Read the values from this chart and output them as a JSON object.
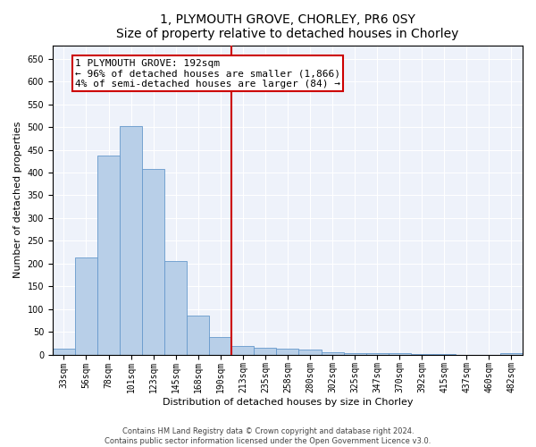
{
  "title": "1, PLYMOUTH GROVE, CHORLEY, PR6 0SY",
  "subtitle": "Size of property relative to detached houses in Chorley",
  "xlabel": "Distribution of detached houses by size in Chorley",
  "ylabel": "Number of detached properties",
  "categories": [
    "33sqm",
    "56sqm",
    "78sqm",
    "101sqm",
    "123sqm",
    "145sqm",
    "168sqm",
    "190sqm",
    "213sqm",
    "235sqm",
    "258sqm",
    "280sqm",
    "302sqm",
    "325sqm",
    "347sqm",
    "370sqm",
    "392sqm",
    "415sqm",
    "437sqm",
    "460sqm",
    "482sqm"
  ],
  "values": [
    13,
    213,
    437,
    503,
    408,
    205,
    85,
    38,
    18,
    15,
    13,
    10,
    6,
    4,
    3,
    3,
    2,
    1,
    0,
    0,
    4
  ],
  "bar_color": "#b8cfe8",
  "bar_edge_color": "#6699cc",
  "vline_x_index": 7.5,
  "vline_color": "#cc0000",
  "annotation_title": "1 PLYMOUTH GROVE: 192sqm",
  "annotation_line1": "← 96% of detached houses are smaller (1,866)",
  "annotation_line2": "4% of semi-detached houses are larger (84) →",
  "annotation_box_color": "#cc0000",
  "ylim": [
    0,
    680
  ],
  "yticks": [
    0,
    50,
    100,
    150,
    200,
    250,
    300,
    350,
    400,
    450,
    500,
    550,
    600,
    650
  ],
  "footnote1": "Contains HM Land Registry data © Crown copyright and database right 2024.",
  "footnote2": "Contains public sector information licensed under the Open Government Licence v3.0.",
  "background_color": "#eef2fa",
  "title_fontsize": 10,
  "subtitle_fontsize": 9,
  "tick_fontsize": 7,
  "ylabel_fontsize": 8,
  "xlabel_fontsize": 8,
  "annotation_fontsize": 8,
  "footnote_fontsize": 6
}
